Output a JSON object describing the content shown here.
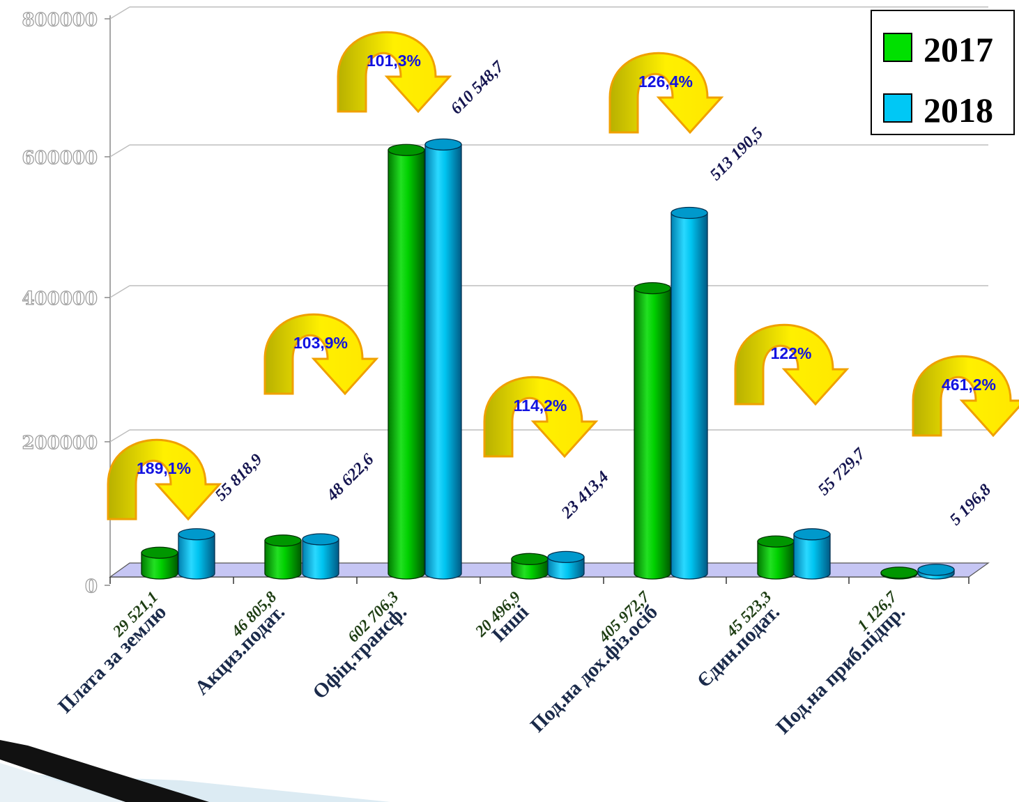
{
  "chart_data": {
    "type": "bar",
    "categories": [
      "Плата за землю",
      "Акциз.подат.",
      "Офіц.трансф.",
      "Інші",
      "Под.на дох.фіз.осіб",
      "Єдин.подат.",
      "Под.на приб.підпр."
    ],
    "series": [
      {
        "name": "2017",
        "color": "#00cc00",
        "values": [
          29521.1,
          46805.8,
          602706.3,
          20496.9,
          405972.7,
          45523.3,
          1126.7
        ],
        "labels": [
          "29 521,1",
          "46 805,8",
          "602 706,3",
          "20 496,9",
          "405 972,7",
          "45 523,3",
          "1 126,7"
        ]
      },
      {
        "name": "2018",
        "color": "#00c0ee",
        "values": [
          55818.9,
          48622.6,
          610548.7,
          23413.4,
          513190.5,
          55729.7,
          5196.8
        ],
        "labels": [
          "55 818,9",
          "48 622,6",
          "610 548,7",
          "23 413,4",
          "513 190,5",
          "55 729,7",
          "5 196,8"
        ]
      }
    ],
    "growth": [
      "189,1%",
      "103,9%",
      "101,3%",
      "114,2%",
      "126,4%",
      "122%",
      "461,2%"
    ],
    "yticks": [
      "0",
      "200000",
      "400000",
      "600000",
      "800000"
    ],
    "ylim": [
      0,
      800000
    ],
    "grid": true,
    "legend": "top-right",
    "title": "",
    "xlabel": "",
    "ylabel": ""
  }
}
